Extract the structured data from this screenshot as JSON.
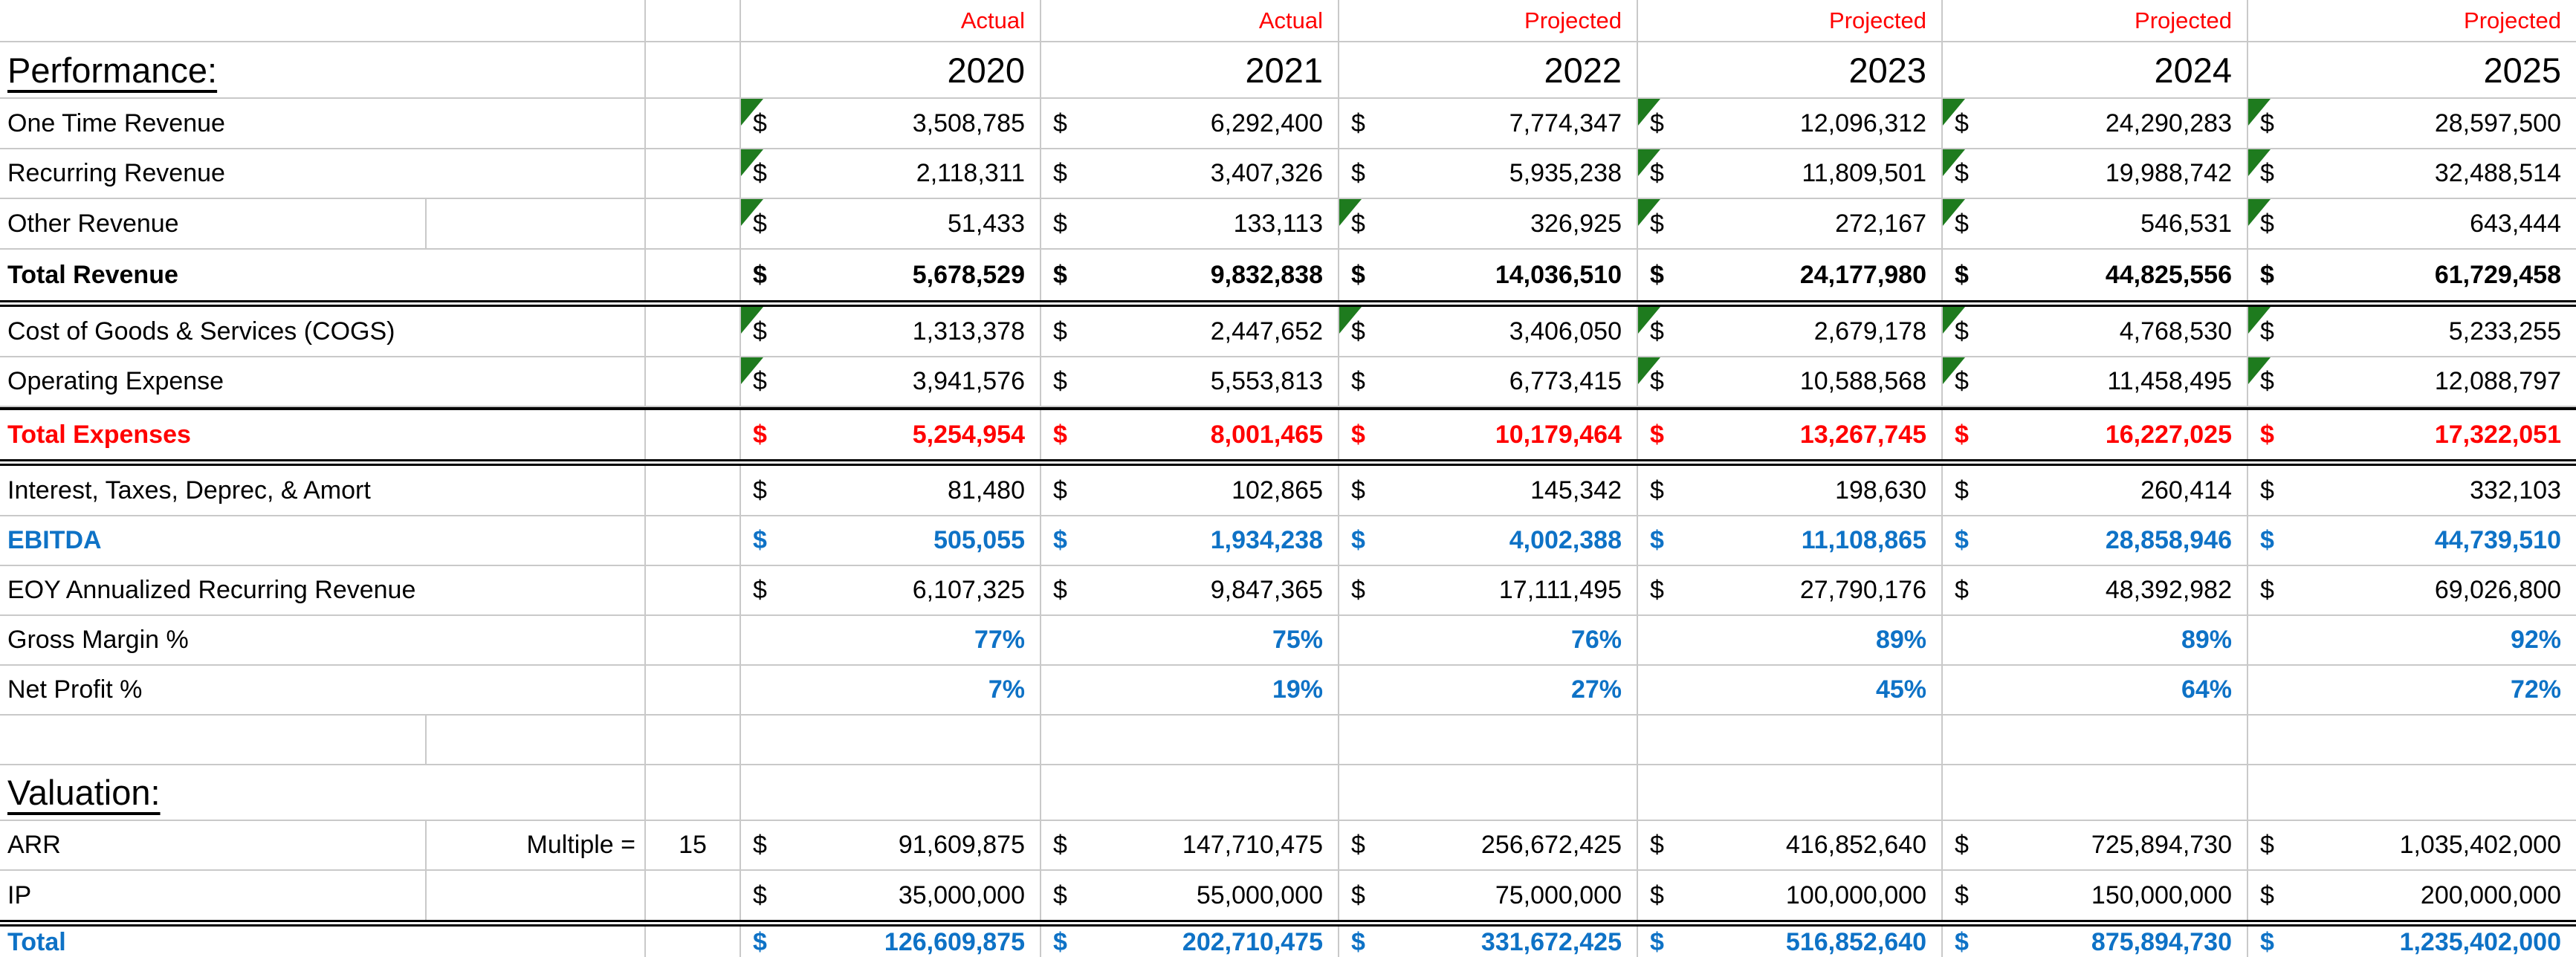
{
  "currency_symbol": "$",
  "colors": {
    "status_red": "#FF0000",
    "accent_blue": "#0E72C6",
    "note_green": "#1E7B1E",
    "gridline": "#C9C9C9"
  },
  "valuation_multiple_label": "Multiple =",
  "valuation_multiple_value": "15",
  "rows": [
    {
      "kind": "status",
      "name": "column-status-header",
      "cells": [
        "Actual",
        "Actual",
        "Projected",
        "Projected",
        "Projected",
        "Projected"
      ]
    },
    {
      "kind": "years",
      "name": "year-header",
      "title": "Performance:",
      "cells": [
        "2020",
        "2021",
        "2022",
        "2023",
        "2024",
        "2025"
      ]
    },
    {
      "kind": "money",
      "name": "one-time-revenue",
      "label": "One Time Revenue",
      "values": [
        "3,508,785",
        "6,292,400",
        "7,774,347",
        "12,096,312",
        "24,290,283",
        "28,597,500"
      ],
      "notes": [
        1,
        0,
        0,
        1,
        1,
        1
      ]
    },
    {
      "kind": "money",
      "name": "recurring-revenue",
      "label": "Recurring Revenue",
      "values": [
        "2,118,311",
        "3,407,326",
        "5,935,238",
        "11,809,501",
        "19,988,742",
        "32,488,514"
      ],
      "notes": [
        1,
        0,
        0,
        1,
        1,
        1
      ]
    },
    {
      "kind": "money",
      "name": "other-revenue",
      "label": "Other Revenue",
      "values": [
        "51,433",
        "133,113",
        "326,925",
        "272,167",
        "546,531",
        "643,444"
      ],
      "notes": [
        1,
        0,
        1,
        1,
        1,
        1
      ],
      "grid_ab": true
    },
    {
      "kind": "money",
      "name": "total-revenue",
      "label": "Total Revenue",
      "style": "bold-black",
      "border": "double",
      "values": [
        "5,678,529",
        "9,832,838",
        "14,036,510",
        "24,177,980",
        "44,825,556",
        "61,729,458"
      ]
    },
    {
      "kind": "money",
      "name": "cogs",
      "label": "Cost of Goods & Services (COGS)",
      "values": [
        "1,313,378",
        "2,447,652",
        "3,406,050",
        "2,679,178",
        "4,768,530",
        "5,233,255"
      ],
      "notes": [
        1,
        0,
        1,
        1,
        1,
        1
      ]
    },
    {
      "kind": "money",
      "name": "operating-expense",
      "label": "Operating Expense",
      "values": [
        "3,941,576",
        "5,553,813",
        "6,773,415",
        "10,588,568",
        "11,458,495",
        "12,088,797"
      ],
      "notes": [
        1,
        0,
        0,
        1,
        1,
        1
      ]
    },
    {
      "kind": "money",
      "name": "total-expenses",
      "label": "Total Expenses",
      "style": "bold-red",
      "border": "thickdouble",
      "values": [
        "5,254,954",
        "8,001,465",
        "10,179,464",
        "13,267,745",
        "16,227,025",
        "17,322,051"
      ]
    },
    {
      "kind": "money",
      "name": "interest-taxes-deprec-amort",
      "label": "Interest, Taxes, Deprec, & Amort",
      "values": [
        "81,480",
        "102,865",
        "145,342",
        "198,630",
        "260,414",
        "332,103"
      ]
    },
    {
      "kind": "money",
      "name": "ebitda",
      "label": "EBITDA",
      "style": "bold-blue",
      "values": [
        "505,055",
        "1,934,238",
        "4,002,388",
        "11,108,865",
        "28,858,946",
        "44,739,510"
      ]
    },
    {
      "kind": "money",
      "name": "eoy-annualized-recurring-revenue",
      "label": "EOY Annualized Recurring Revenue",
      "values": [
        "6,107,325",
        "9,847,365",
        "17,111,495",
        "27,790,176",
        "48,392,982",
        "69,026,800"
      ]
    },
    {
      "kind": "percent",
      "name": "gross-margin-pct",
      "label": "Gross Margin %",
      "values": [
        "77%",
        "75%",
        "76%",
        "89%",
        "89%",
        "92%"
      ]
    },
    {
      "kind": "percent",
      "name": "net-profit-pct",
      "label": "Net Profit %",
      "values": [
        "7%",
        "19%",
        "27%",
        "45%",
        "64%",
        "72%"
      ]
    },
    {
      "kind": "spacer",
      "name": "spacer-row",
      "grid_ab": true
    },
    {
      "kind": "title",
      "name": "valuation-header",
      "title": "Valuation:"
    },
    {
      "kind": "money",
      "name": "arr",
      "label": "ARR",
      "extra_label": "Multiple =",
      "extra_value": "15",
      "values": [
        "91,609,875",
        "147,710,475",
        "256,672,425",
        "416,852,640",
        "725,894,730",
        "1,035,402,000"
      ],
      "grid_ab": true
    },
    {
      "kind": "money",
      "name": "ip",
      "label": "IP",
      "border": "double",
      "values": [
        "35,000,000",
        "55,000,000",
        "75,000,000",
        "100,000,000",
        "150,000,000",
        "200,000,000"
      ],
      "grid_ab": true
    },
    {
      "kind": "money",
      "name": "valuation-total",
      "label": "Total",
      "style": "bold-blue",
      "last": true,
      "values": [
        "126,609,875",
        "202,710,475",
        "331,672,425",
        "516,852,640",
        "875,894,730",
        "1,235,402,000"
      ]
    }
  ]
}
